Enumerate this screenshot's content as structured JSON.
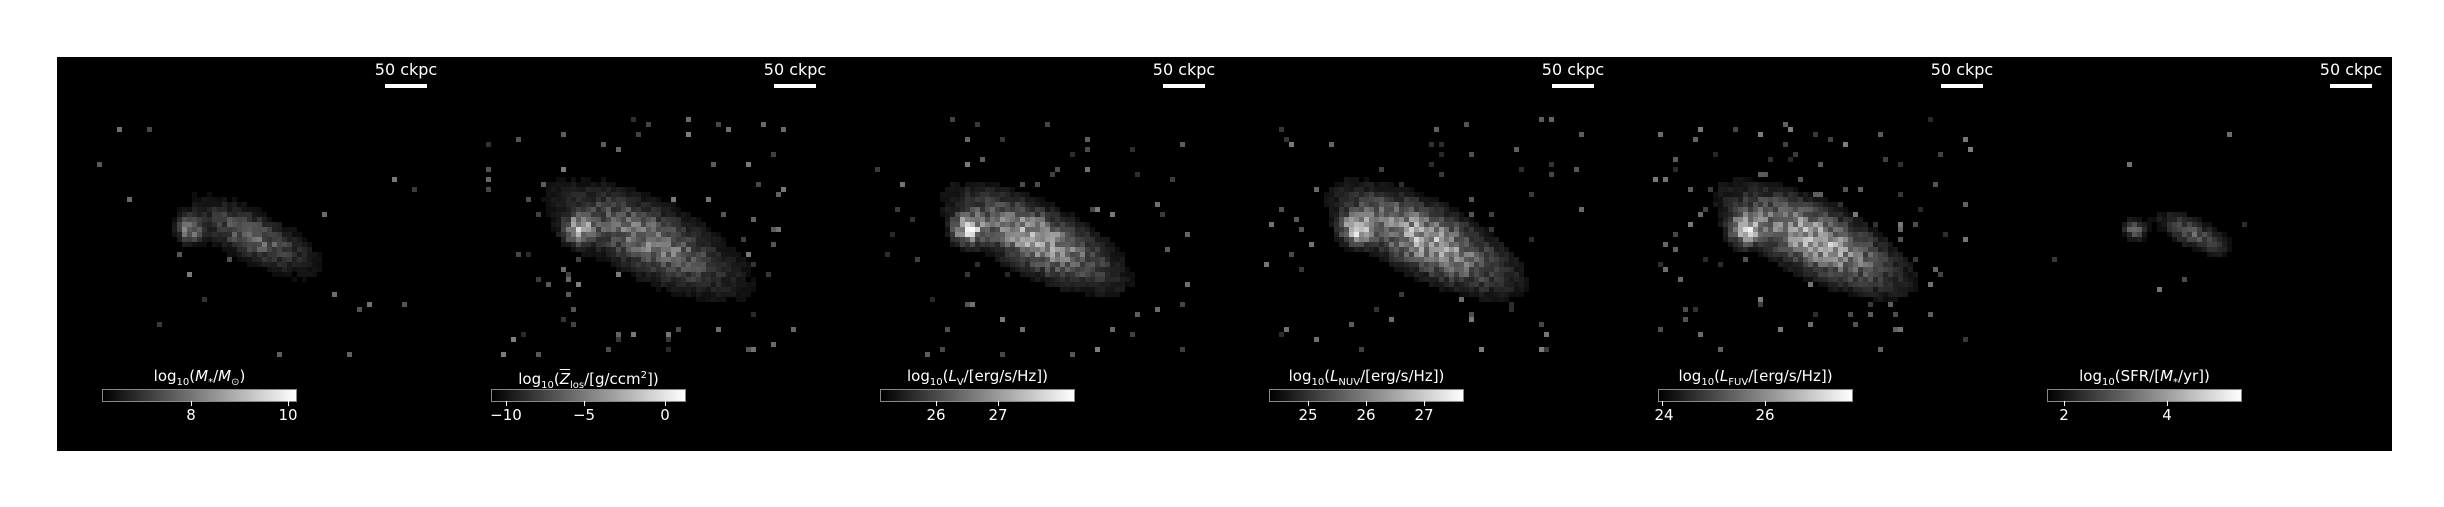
{
  "scale_bar_label": "50 ckpc",
  "panels": [
    {
      "colorbar_title": "log10(M*/M⊙)",
      "ticks": [
        {
          "label": "8",
          "frac": 0.46
        },
        {
          "label": "10",
          "frac": 0.96
        }
      ]
    },
    {
      "colorbar_title": "log10(Z̅los/[g/ccm²])",
      "ticks": [
        {
          "label": "−10",
          "frac": 0.08
        },
        {
          "label": "−5",
          "frac": 0.48
        },
        {
          "label": "0",
          "frac": 0.9
        }
      ]
    },
    {
      "colorbar_title": "log10(LV/[erg/s/Hz])",
      "ticks": [
        {
          "label": "26",
          "frac": 0.29
        },
        {
          "label": "27",
          "frac": 0.61
        }
      ]
    },
    {
      "colorbar_title": "log10(LNUV/[erg/s/Hz])",
      "ticks": [
        {
          "label": "25",
          "frac": 0.2
        },
        {
          "label": "26",
          "frac": 0.5
        },
        {
          "label": "27",
          "frac": 0.8
        }
      ]
    },
    {
      "colorbar_title": "log10(LFUV/[erg/s/Hz])",
      "ticks": [
        {
          "label": "24",
          "frac": 0.02
        },
        {
          "label": "26",
          "frac": 0.55
        }
      ]
    },
    {
      "colorbar_title": "log10(SFR/[M*/yr])",
      "ticks": [
        {
          "label": "2",
          "frac": 0.09
        },
        {
          "label": "4",
          "frac": 0.62
        }
      ]
    }
  ]
}
